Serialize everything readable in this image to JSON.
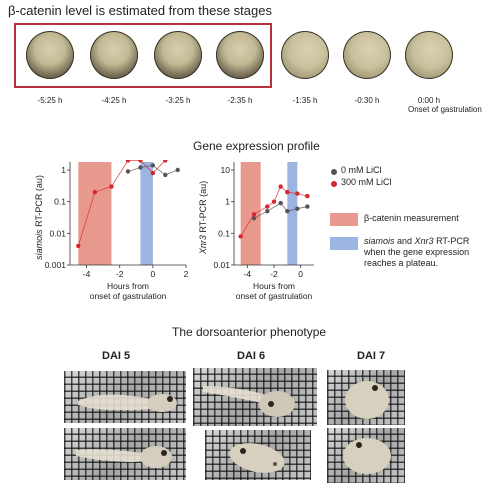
{
  "header": {
    "title": "β-catenin level is estimated from these stages"
  },
  "stages": {
    "times": [
      "-5:25 h",
      "-4:25 h",
      "-3:25 h",
      "-2:35 h",
      "-1:35 h",
      "-0:30 h",
      "0:00 h"
    ],
    "onset_label": "Onset of gastrulation"
  },
  "profile": {
    "title": "Gene expression profile"
  },
  "legend": {
    "control": "0 mM LiCl",
    "licl": "300 mM LiCl",
    "beta": "β-catenin measurement",
    "rtpcr_gene1": "siamois",
    "rtpcr_and": " and ",
    "rtpcr_gene2": "Xnr3",
    "rtpcr_rest": " RT-PCR",
    "rtpcr_line2": "when the gene expression",
    "rtpcr_line3": "reaches a plateau.",
    "colors": {
      "control": "#555555",
      "licl": "#d9262b",
      "beta": "#e8998d",
      "rtpcr": "#9cb4e0"
    }
  },
  "phenotype": {
    "title": "The dorsoanterior phenotype",
    "dai": [
      "DAI 5",
      "DAI 6",
      "DAI 7"
    ]
  },
  "chart_data": [
    {
      "type": "line",
      "title": "",
      "ylabel_gene": "siamois",
      "ylabel_rest": " RT-PCR (au)",
      "xlabel_line1": "Hours from",
      "xlabel_line2": "onset of gastrulation",
      "xlim": [
        -5,
        2
      ],
      "ylim": [
        0.001,
        1
      ],
      "yscale": "log",
      "xticks": [
        "-4",
        "-2",
        "0",
        "2"
      ],
      "yticks": [
        "0.001",
        "0.01",
        "0.1",
        "1"
      ],
      "shaded": [
        {
          "label": "β-catenin measurement",
          "from": -4.5,
          "to": -2.5,
          "color": "#e8998d"
        },
        {
          "label": "siamois and Xnr3 RT-PCR",
          "from": -0.75,
          "to": 0,
          "color": "#9cb4e0"
        }
      ],
      "series": [
        {
          "name": "0 mM LiCl",
          "color": "#555555",
          "x": [
            -1.5,
            -0.75,
            0,
            0.75,
            1.5
          ],
          "y": [
            0.9,
            1.2,
            1.4,
            0.7,
            1.0
          ]
        },
        {
          "name": "300 mM LiCl",
          "color": "#d9262b",
          "x": [
            -4.5,
            -3.5,
            -2.5,
            -1.5,
            -0.75,
            0,
            0.75
          ],
          "y": [
            0.004,
            0.2,
            0.3,
            2.0,
            2.0,
            0.8,
            2.0
          ]
        }
      ]
    },
    {
      "type": "line",
      "title": "",
      "ylabel_gene": "Xnr3",
      "ylabel_rest": " RT-PCR (au)",
      "xlabel_line1": "Hours from",
      "xlabel_line2": "onset of gastrulation",
      "xlim": [
        -5,
        1
      ],
      "ylim": [
        0.01,
        10
      ],
      "yscale": "log",
      "xticks": [
        "-4",
        "-2",
        "0"
      ],
      "yticks": [
        "0.01",
        "0.1",
        "1",
        "10"
      ],
      "shaded": [
        {
          "label": "β-catenin measurement",
          "from": -4.5,
          "to": -3.0,
          "color": "#e8998d"
        },
        {
          "label": "siamois and Xnr3 RT-PCR",
          "from": -1.0,
          "to": -0.25,
          "color": "#9cb4e0"
        }
      ],
      "series": [
        {
          "name": "0 mM LiCl",
          "color": "#555555",
          "x": [
            -3.5,
            -2.5,
            -1.5,
            -1.0,
            -0.25,
            0.5
          ],
          "y": [
            0.3,
            0.5,
            0.9,
            0.5,
            0.6,
            0.7
          ]
        },
        {
          "name": "300 mM LiCl",
          "color": "#d9262b",
          "x": [
            -4.5,
            -3.5,
            -2.5,
            -2.0,
            -1.5,
            -1.0,
            -0.25,
            0.5
          ],
          "y": [
            0.08,
            0.4,
            0.7,
            1.0,
            3.0,
            2.0,
            1.8,
            1.5
          ]
        }
      ]
    }
  ]
}
